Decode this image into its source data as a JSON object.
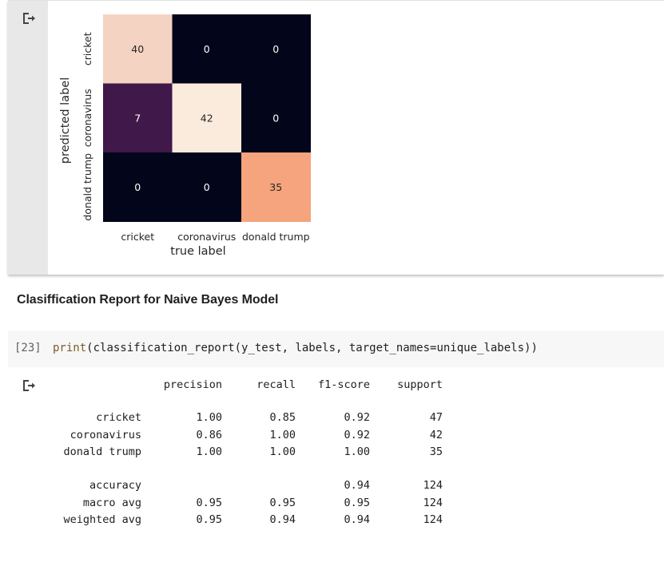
{
  "heatmap_output": {
    "icon": "output-redirect-icon",
    "chart_data": {
      "type": "heatmap",
      "xlabel": "true label",
      "ylabel": "predicted label",
      "x_categories": [
        "cricket",
        "coronavirus",
        "donald trump"
      ],
      "y_categories": [
        "cricket",
        "coronavirus",
        "donald trump"
      ],
      "values": [
        [
          40,
          0,
          0
        ],
        [
          7,
          42,
          0
        ],
        [
          0,
          0,
          35
        ]
      ],
      "cell_colors": [
        [
          "#f5d3c2",
          "#03051a",
          "#03051a"
        ],
        [
          "#40184a",
          "#faebdd",
          "#03051a"
        ],
        [
          "#03051a",
          "#03051a",
          "#f5a47d"
        ]
      ],
      "cell_text_colors": [
        [
          "#262626",
          "#ffffff",
          "#ffffff"
        ],
        [
          "#ffffff",
          "#262626",
          "#ffffff"
        ],
        [
          "#ffffff",
          "#ffffff",
          "#262626"
        ]
      ],
      "colorbar": false
    }
  },
  "markdown": {
    "heading": "Clasiffication Report for Naive Bayes Model"
  },
  "code_cell": {
    "exec_count": "[23]",
    "func": "print",
    "args": "(classification_report(y_test, labels, target_names=unique_labels))"
  },
  "report_output": {
    "icon": "output-redirect-icon",
    "header": [
      "precision",
      "recall",
      "f1-score",
      "support"
    ],
    "rows": [
      {
        "label": "cricket",
        "precision": "1.00",
        "recall": "0.85",
        "f1": "0.92",
        "support": "47"
      },
      {
        "label": "coronavirus",
        "precision": "0.86",
        "recall": "1.00",
        "f1": "0.92",
        "support": "42"
      },
      {
        "label": "donald trump",
        "precision": "1.00",
        "recall": "1.00",
        "f1": "1.00",
        "support": "35"
      }
    ],
    "summary": [
      {
        "label": "accuracy",
        "precision": "",
        "recall": "",
        "f1": "0.94",
        "support": "124"
      },
      {
        "label": "macro avg",
        "precision": "0.95",
        "recall": "0.95",
        "f1": "0.95",
        "support": "124"
      },
      {
        "label": "weighted avg",
        "precision": "0.95",
        "recall": "0.94",
        "f1": "0.94",
        "support": "124"
      }
    ]
  }
}
